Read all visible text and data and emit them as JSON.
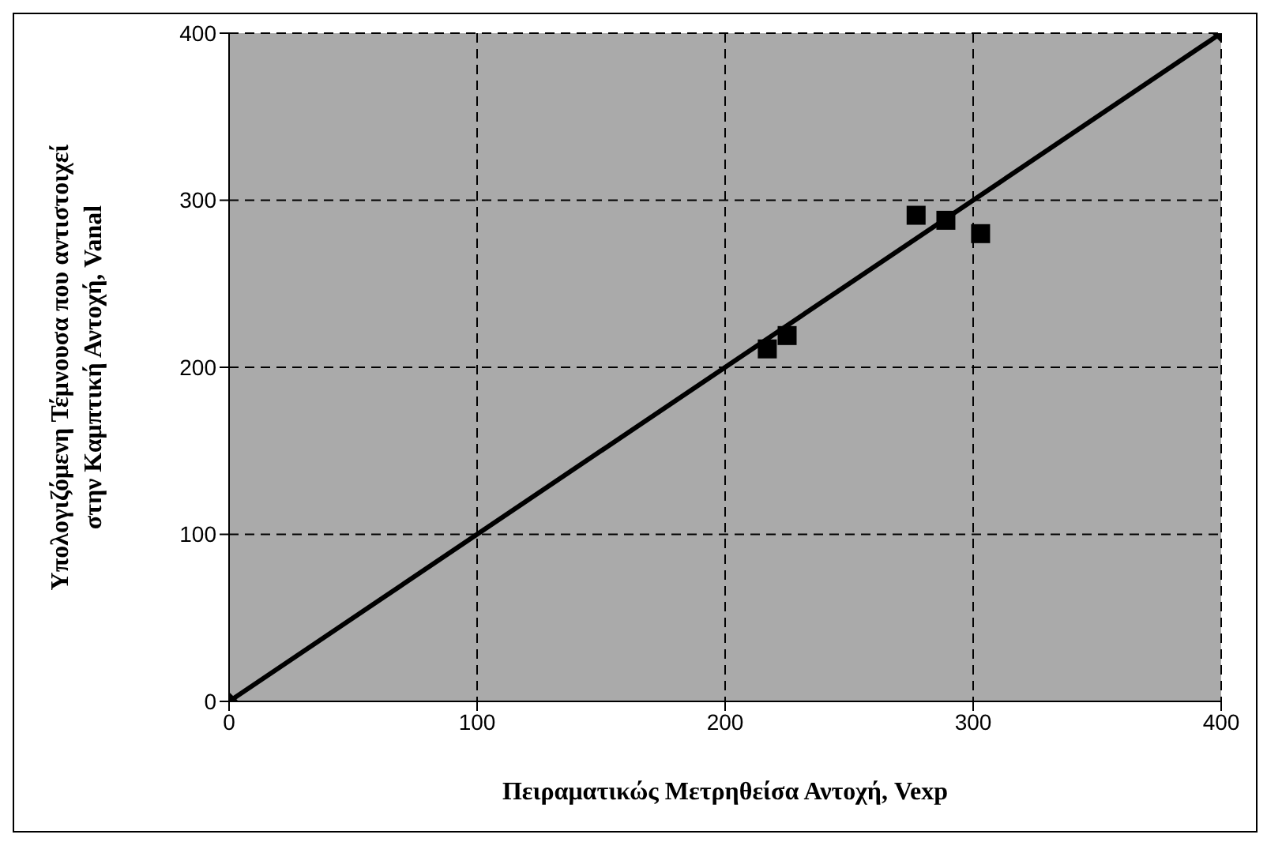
{
  "chart_data": {
    "type": "scatter",
    "xlabel": "Πειραματικώς Μετρηθείσα Αντοχή, Vexp",
    "ylabel": "Υπολογιζόμενη Τέμνουσα που αντιστοιχεί στην Καμπτική Αντοχή, Vanal",
    "series": [
      {
        "type": "line",
        "color": "#000000",
        "x": [
          0,
          400
        ],
        "values": [
          0,
          400
        ],
        "marker": "diamond",
        "line_style": "solid"
      },
      {
        "color": "#000000",
        "x": [
          217,
          225,
          277,
          289,
          303
        ],
        "values": [
          211,
          219,
          291,
          288,
          280
        ],
        "marker": "square"
      }
    ],
    "xlim": [
      0,
      400
    ],
    "xticks": [
      0,
      100,
      200,
      300,
      400
    ],
    "ylim": [
      0,
      400
    ],
    "yticks": [
      0,
      100,
      200,
      300,
      400
    ],
    "grid": true
  }
}
